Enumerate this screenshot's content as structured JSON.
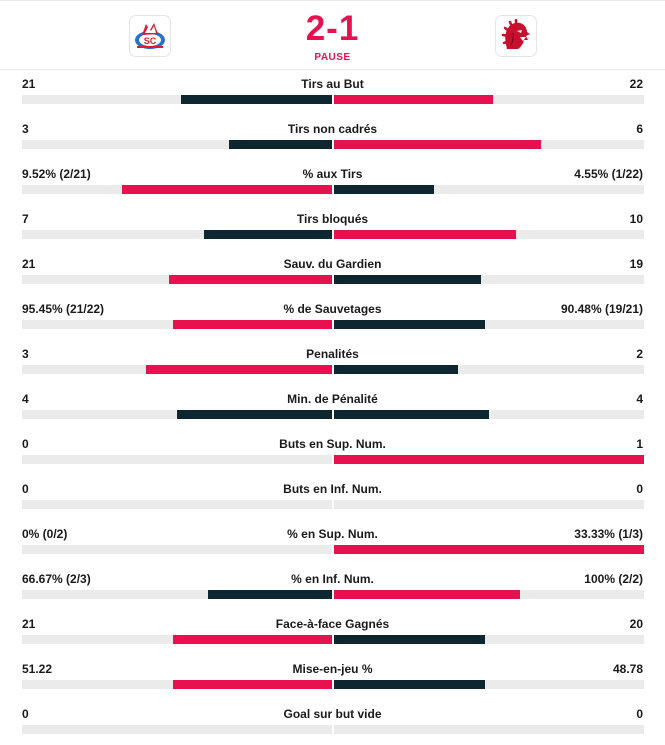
{
  "colors": {
    "red": "#e8114f",
    "dark": "#0d2630",
    "track": "#ebebeb"
  },
  "match": {
    "home_logo_icon": "zsc-lions-logo-icon",
    "away_logo_icon": "lausanne-lion-logo-icon",
    "score": "2-1",
    "status": "PAUSE"
  },
  "stats": [
    {
      "label": "Tirs au But",
      "home": "21",
      "away": "22",
      "home_pct": 48.8,
      "away_pct": 51.2,
      "home_color": "dark",
      "away_color": "red"
    },
    {
      "label": "Tirs non cadrés",
      "home": "3",
      "away": "6",
      "home_pct": 33.3,
      "away_pct": 66.7,
      "home_color": "dark",
      "away_color": "red"
    },
    {
      "label": "% aux Tirs",
      "home": "9.52% (2/21)",
      "away": "4.55% (1/22)",
      "home_pct": 67.7,
      "away_pct": 32.3,
      "home_color": "red",
      "away_color": "dark"
    },
    {
      "label": "Tirs bloqués",
      "home": "7",
      "away": "10",
      "home_pct": 41.2,
      "away_pct": 58.8,
      "home_color": "dark",
      "away_color": "red"
    },
    {
      "label": "Sauv. du Gardien",
      "home": "21",
      "away": "19",
      "home_pct": 52.5,
      "away_pct": 47.5,
      "home_color": "red",
      "away_color": "dark"
    },
    {
      "label": "% de Sauvetages",
      "home": "95.45% (21/22)",
      "away": "90.48% (19/21)",
      "home_pct": 51.3,
      "away_pct": 48.7,
      "home_color": "red",
      "away_color": "dark"
    },
    {
      "label": "Penalités",
      "home": "3",
      "away": "2",
      "home_pct": 60.0,
      "away_pct": 40.0,
      "home_color": "red",
      "away_color": "dark"
    },
    {
      "label": "Min. de Pénalité",
      "home": "4",
      "away": "4",
      "home_pct": 50.0,
      "away_pct": 50.0,
      "home_color": "dark",
      "away_color": "dark"
    },
    {
      "label": "Buts en Sup. Num.",
      "home": "0",
      "away": "1",
      "home_pct": 0,
      "away_pct": 100,
      "home_color": "dark",
      "away_color": "red"
    },
    {
      "label": "Buts en Inf. Num.",
      "home": "0",
      "away": "0",
      "home_pct": 0,
      "away_pct": 0,
      "home_color": "dark",
      "away_color": "dark"
    },
    {
      "label": "% en Sup. Num.",
      "home": "0% (0/2)",
      "away": "33.33% (1/3)",
      "home_pct": 0,
      "away_pct": 100,
      "home_color": "dark",
      "away_color": "red"
    },
    {
      "label": "% en Inf. Num.",
      "home": "66.67% (2/3)",
      "away": "100% (2/2)",
      "home_pct": 40.0,
      "away_pct": 60.0,
      "home_color": "dark",
      "away_color": "red"
    },
    {
      "label": "Face-à-face Gagnés",
      "home": "21",
      "away": "20",
      "home_pct": 51.2,
      "away_pct": 48.8,
      "home_color": "red",
      "away_color": "dark"
    },
    {
      "label": "Mise-en-jeu %",
      "home": "51.22",
      "away": "48.78",
      "home_pct": 51.2,
      "away_pct": 48.8,
      "home_color": "red",
      "away_color": "dark"
    },
    {
      "label": "Goal sur but vide",
      "home": "0",
      "away": "0",
      "home_pct": 0,
      "away_pct": 0,
      "home_color": "dark",
      "away_color": "dark"
    }
  ]
}
